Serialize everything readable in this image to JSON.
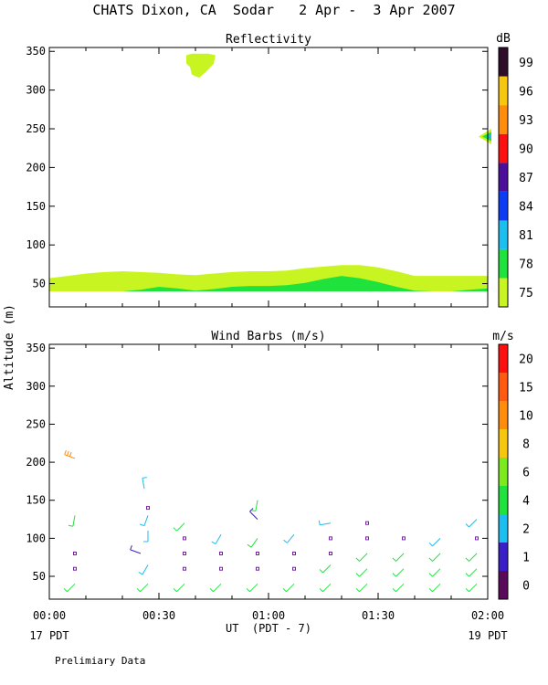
{
  "header": {
    "title": "CHATS Dixon, CA  Sodar   2 Apr -  3 Apr 2007"
  },
  "footer": {
    "x_axis_label": "UT  (PDT - 7)",
    "left_date": "17 PDT",
    "right_date": "19 PDT",
    "note": "Prelimiary Data"
  },
  "shared_y_label": "Altitude (m)",
  "chart_data": [
    {
      "type": "area",
      "title": "Reflectivity",
      "ylabel": "Altitude (m)",
      "xlim": [
        "00:00",
        "02:00"
      ],
      "x_ticks": [
        "00:00",
        "00:30",
        "01:00",
        "01:30",
        "02:00"
      ],
      "ylim": [
        20,
        355
      ],
      "y_ticks": [
        50,
        100,
        150,
        200,
        250,
        300,
        350
      ],
      "colorbar": {
        "unit": "dB",
        "ticks": [
          75,
          78,
          81,
          84,
          87,
          90,
          93,
          96,
          99
        ],
        "colors": [
          "#c8f522",
          "#1fe33c",
          "#1cbef0",
          "#0c3cf5",
          "#4b0f9c",
          "#ff1010",
          "#ff8c0a",
          "#f7c60f",
          "#2e0d2b"
        ]
      },
      "layers": [
        {
          "level": 75,
          "x_minutes": [
            0,
            5,
            10,
            15,
            20,
            25,
            30,
            35,
            40,
            45,
            50,
            55,
            60,
            65,
            70,
            75,
            80,
            85,
            90,
            95,
            100,
            105,
            110,
            115,
            120
          ],
          "top_m": [
            57,
            60,
            63,
            65,
            66,
            65,
            64,
            62,
            61,
            63,
            65,
            66,
            66,
            67,
            70,
            72,
            74,
            74,
            71,
            66,
            60,
            60,
            60,
            60,
            60
          ],
          "bottom_m": 40
        },
        {
          "level": 78,
          "x_minutes": [
            20,
            25,
            30,
            35,
            40,
            45,
            50,
            55,
            60,
            65,
            70,
            75,
            80,
            85,
            90,
            95,
            100,
            105,
            110,
            115,
            120
          ],
          "top_m": [
            40,
            42,
            46,
            44,
            41,
            43,
            46,
            47,
            47,
            48,
            51,
            56,
            60,
            57,
            52,
            46,
            41,
            40,
            40,
            42,
            44
          ],
          "bottom_m": 40
        }
      ],
      "blobs": [
        {
          "level": 75,
          "x_minutes": [
            37.5,
            39,
            40.5,
            42,
            43.5,
            45.5,
            45,
            43,
            41,
            39,
            38.5,
            37.5
          ],
          "alt_m": [
            345,
            347,
            347,
            347,
            347,
            345,
            334,
            324,
            316,
            320,
            330,
            334
          ]
        },
        {
          "level": 75,
          "x_minutes": [
            117.5,
            121,
            121,
            117.5
          ],
          "alt_m": [
            240,
            250,
            230,
            240
          ]
        },
        {
          "level": 78,
          "x_minutes": [
            118.5,
            121,
            121,
            118.5
          ],
          "alt_m": [
            240,
            246,
            234,
            240
          ]
        },
        {
          "level": 81,
          "x_minutes": [
            119.5,
            121,
            121,
            119.5
          ],
          "alt_m": [
            240,
            243,
            237,
            240
          ]
        }
      ]
    },
    {
      "type": "scatter",
      "title": "Wind Barbs (m/s)",
      "ylabel": "Altitude (m)",
      "xlim": [
        "00:00",
        "02:00"
      ],
      "x_ticks": [
        "00:00",
        "00:30",
        "01:00",
        "01:30",
        "02:00"
      ],
      "ylim": [
        20,
        355
      ],
      "y_ticks": [
        50,
        100,
        150,
        200,
        250,
        300,
        350
      ],
      "colorbar": {
        "unit": "m/s",
        "ticks": [
          0,
          1,
          2,
          4,
          6,
          8,
          10,
          15,
          20
        ],
        "colors": [
          "#5a0a5a",
          "#3a1ec8",
          "#1cbef0",
          "#1fe33c",
          "#7cea1e",
          "#f7c60f",
          "#ff8c0a",
          "#ff5a10",
          "#ff1010"
        ]
      },
      "barbs": [
        {
          "t": 7,
          "alt": 40,
          "dir": 225,
          "spd": 4
        },
        {
          "t": 7,
          "alt": 60,
          "dir": 0,
          "spd": 0
        },
        {
          "t": 7,
          "alt": 80,
          "dir": 0,
          "spd": 0
        },
        {
          "t": 7,
          "alt": 130,
          "dir": 190,
          "spd": 4
        },
        {
          "t": 7,
          "alt": 205,
          "dir": 290,
          "spd": 14
        },
        {
          "t": 25,
          "alt": 80,
          "dir": 290,
          "spd": 1
        },
        {
          "t": 26,
          "alt": 165,
          "dir": 350,
          "spd": 2
        },
        {
          "t": 27,
          "alt": 40,
          "dir": 225,
          "spd": 4
        },
        {
          "t": 27,
          "alt": 65,
          "dir": 210,
          "spd": 3
        },
        {
          "t": 27,
          "alt": 110,
          "dir": 180,
          "spd": 3
        },
        {
          "t": 27,
          "alt": 130,
          "dir": 200,
          "spd": 3
        },
        {
          "t": 27,
          "alt": 140,
          "dir": 0,
          "spd": 0
        },
        {
          "t": 37,
          "alt": 40,
          "dir": 225,
          "spd": 4
        },
        {
          "t": 37,
          "alt": 60,
          "dir": 0,
          "spd": 0
        },
        {
          "t": 37,
          "alt": 80,
          "dir": 0,
          "spd": 0
        },
        {
          "t": 37,
          "alt": 100,
          "dir": 0,
          "spd": 0
        },
        {
          "t": 37,
          "alt": 120,
          "dir": 225,
          "spd": 4
        },
        {
          "t": 47,
          "alt": 40,
          "dir": 225,
          "spd": 4
        },
        {
          "t": 47,
          "alt": 60,
          "dir": 0,
          "spd": 0
        },
        {
          "t": 47,
          "alt": 80,
          "dir": 0,
          "spd": 0
        },
        {
          "t": 47,
          "alt": 105,
          "dir": 210,
          "spd": 3
        },
        {
          "t": 57,
          "alt": 40,
          "dir": 225,
          "spd": 4
        },
        {
          "t": 57,
          "alt": 60,
          "dir": 0,
          "spd": 0
        },
        {
          "t": 57,
          "alt": 80,
          "dir": 0,
          "spd": 0
        },
        {
          "t": 57,
          "alt": 100,
          "dir": 215,
          "spd": 4
        },
        {
          "t": 57,
          "alt": 125,
          "dir": 315,
          "spd": 1
        },
        {
          "t": 57,
          "alt": 150,
          "dir": 190,
          "spd": 4
        },
        {
          "t": 67,
          "alt": 40,
          "dir": 225,
          "spd": 4
        },
        {
          "t": 67,
          "alt": 60,
          "dir": 0,
          "spd": 0
        },
        {
          "t": 67,
          "alt": 80,
          "dir": 0,
          "spd": 0
        },
        {
          "t": 67,
          "alt": 105,
          "dir": 220,
          "spd": 3
        },
        {
          "t": 77,
          "alt": 40,
          "dir": 225,
          "spd": 4
        },
        {
          "t": 77,
          "alt": 65,
          "dir": 225,
          "spd": 4
        },
        {
          "t": 77,
          "alt": 80,
          "dir": 0,
          "spd": 0
        },
        {
          "t": 77,
          "alt": 100,
          "dir": 0,
          "spd": 0
        },
        {
          "t": 77,
          "alt": 120,
          "dir": 260,
          "spd": 3
        },
        {
          "t": 87,
          "alt": 40,
          "dir": 225,
          "spd": 4
        },
        {
          "t": 87,
          "alt": 60,
          "dir": 225,
          "spd": 4
        },
        {
          "t": 87,
          "alt": 80,
          "dir": 225,
          "spd": 4
        },
        {
          "t": 87,
          "alt": 100,
          "dir": 0,
          "spd": 0
        },
        {
          "t": 87,
          "alt": 120,
          "dir": 0,
          "spd": 0
        },
        {
          "t": 97,
          "alt": 40,
          "dir": 225,
          "spd": 4
        },
        {
          "t": 97,
          "alt": 60,
          "dir": 225,
          "spd": 4
        },
        {
          "t": 97,
          "alt": 80,
          "dir": 225,
          "spd": 4
        },
        {
          "t": 97,
          "alt": 100,
          "dir": 0,
          "spd": 0
        },
        {
          "t": 107,
          "alt": 40,
          "dir": 225,
          "spd": 4
        },
        {
          "t": 107,
          "alt": 60,
          "dir": 225,
          "spd": 4
        },
        {
          "t": 107,
          "alt": 80,
          "dir": 225,
          "spd": 4
        },
        {
          "t": 107,
          "alt": 100,
          "dir": 225,
          "spd": 3
        },
        {
          "t": 117,
          "alt": 40,
          "dir": 225,
          "spd": 4
        },
        {
          "t": 117,
          "alt": 60,
          "dir": 225,
          "spd": 4
        },
        {
          "t": 117,
          "alt": 80,
          "dir": 225,
          "spd": 4
        },
        {
          "t": 117,
          "alt": 100,
          "dir": 0,
          "spd": 0
        },
        {
          "t": 117,
          "alt": 125,
          "dir": 225,
          "spd": 3
        }
      ]
    }
  ]
}
